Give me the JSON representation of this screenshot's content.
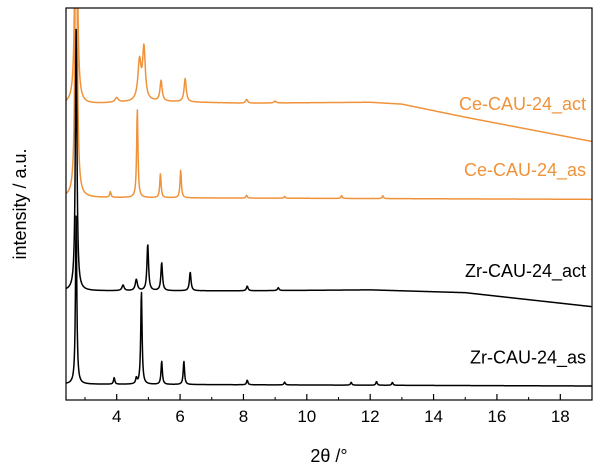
{
  "chart_data": {
    "type": "line",
    "title": "",
    "xlabel": "2θ /°",
    "ylabel": "intensity / a.u.",
    "xlim": [
      2.4,
      19.0
    ],
    "xticks": [
      4,
      6,
      8,
      10,
      12,
      14,
      16,
      18
    ],
    "yticks": [],
    "grid": false,
    "legend": "none",
    "colors": {
      "black": "#000000",
      "orange": "#f0923a"
    },
    "series": [
      {
        "name": "Ce-CAU-24_act",
        "color": "#f0923a",
        "offset": 3.0,
        "baseline": [
          [
            2.45,
            0.02
          ],
          [
            3.0,
            0.02
          ],
          [
            5.0,
            0.05
          ],
          [
            8.0,
            0.03
          ],
          [
            12.0,
            0.04
          ],
          [
            13.0,
            0.02
          ],
          [
            15.0,
            -0.12
          ],
          [
            17.0,
            -0.25
          ],
          [
            19.0,
            -0.38
          ]
        ],
        "peaks": [
          {
            "x": 2.72,
            "h": 4.8,
            "w": 0.03
          },
          {
            "x": 4.0,
            "h": 0.05,
            "w": 0.06
          },
          {
            "x": 4.72,
            "h": 0.42,
            "w": 0.06
          },
          {
            "x": 4.86,
            "h": 0.55,
            "w": 0.05
          },
          {
            "x": 5.4,
            "h": 0.22,
            "w": 0.04
          },
          {
            "x": 6.16,
            "h": 0.25,
            "w": 0.04
          },
          {
            "x": 8.1,
            "h": 0.04,
            "w": 0.04
          },
          {
            "x": 9.0,
            "h": 0.02,
            "w": 0.04
          }
        ]
      },
      {
        "name": "Ce-CAU-24_as",
        "color": "#f0923a",
        "offset": 2.0,
        "baseline": [
          [
            2.45,
            0.02
          ],
          [
            19.0,
            0.0
          ]
        ],
        "peaks": [
          {
            "x": 2.72,
            "h": 4.8,
            "w": 0.03
          },
          {
            "x": 3.8,
            "h": 0.06,
            "w": 0.025
          },
          {
            "x": 4.65,
            "h": 0.95,
            "w": 0.025
          },
          {
            "x": 5.38,
            "h": 0.26,
            "w": 0.025
          },
          {
            "x": 6.02,
            "h": 0.3,
            "w": 0.025
          },
          {
            "x": 8.1,
            "h": 0.03,
            "w": 0.025
          },
          {
            "x": 9.3,
            "h": 0.02,
            "w": 0.025
          },
          {
            "x": 11.1,
            "h": 0.03,
            "w": 0.025
          },
          {
            "x": 12.4,
            "h": 0.03,
            "w": 0.025
          }
        ]
      },
      {
        "name": "Zr-CAU-24_act",
        "color": "#000000",
        "offset": 1.0,
        "baseline": [
          [
            2.45,
            0.02
          ],
          [
            8.0,
            0.02
          ],
          [
            12.0,
            0.03
          ],
          [
            15.0,
            0.0
          ],
          [
            19.0,
            -0.15
          ]
        ],
        "peaks": [
          {
            "x": 2.72,
            "h": 2.8,
            "w": 0.03
          },
          {
            "x": 4.2,
            "h": 0.06,
            "w": 0.04
          },
          {
            "x": 4.62,
            "h": 0.12,
            "w": 0.04
          },
          {
            "x": 4.98,
            "h": 0.5,
            "w": 0.03
          },
          {
            "x": 5.42,
            "h": 0.3,
            "w": 0.03
          },
          {
            "x": 6.32,
            "h": 0.2,
            "w": 0.03
          },
          {
            "x": 8.12,
            "h": 0.05,
            "w": 0.03
          },
          {
            "x": 9.1,
            "h": 0.03,
            "w": 0.03
          }
        ]
      },
      {
        "name": "Zr-CAU-24_as",
        "color": "#000000",
        "offset": 0.0,
        "baseline": [
          [
            2.45,
            0.02
          ],
          [
            19.0,
            0.0
          ]
        ],
        "peaks": [
          {
            "x": 2.72,
            "h": 1.8,
            "w": 0.025
          },
          {
            "x": 3.92,
            "h": 0.07,
            "w": 0.025
          },
          {
            "x": 4.62,
            "h": 0.06,
            "w": 0.025
          },
          {
            "x": 4.78,
            "h": 1.0,
            "w": 0.025
          },
          {
            "x": 5.42,
            "h": 0.25,
            "w": 0.025
          },
          {
            "x": 6.12,
            "h": 0.25,
            "w": 0.025
          },
          {
            "x": 8.12,
            "h": 0.05,
            "w": 0.025
          },
          {
            "x": 9.3,
            "h": 0.03,
            "w": 0.025
          },
          {
            "x": 11.4,
            "h": 0.03,
            "w": 0.025
          },
          {
            "x": 12.2,
            "h": 0.04,
            "w": 0.025
          },
          {
            "x": 12.7,
            "h": 0.03,
            "w": 0.025
          }
        ]
      }
    ]
  }
}
